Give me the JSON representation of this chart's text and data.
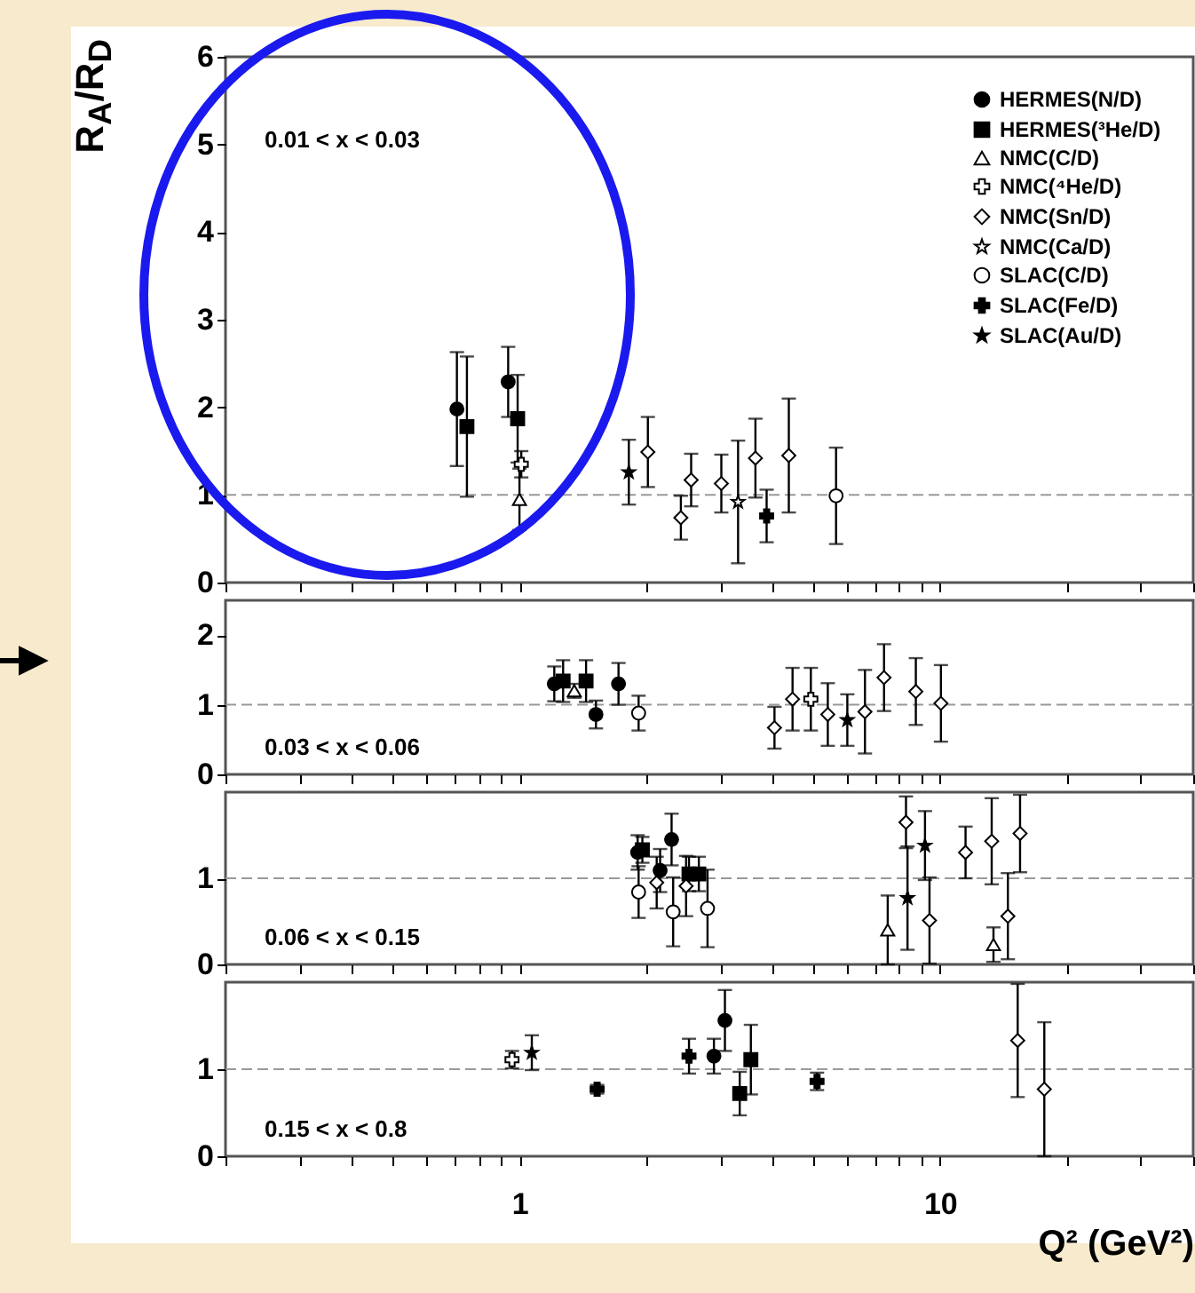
{
  "chart_data": [
    {
      "type": "scatter",
      "ylabel": "R$_{A}$/R$_{D}$",
      "annotations": [
        "0.01 < x < 0.03"
      ],
      "log": "x",
      "xlim": [
        0.2,
        40
      ],
      "xticks": [
        {
          "value": 0.2,
          "label": null
        },
        {
          "value": 0.3,
          "label": null
        },
        {
          "value": 0.4,
          "label": null
        },
        {
          "value": 0.5,
          "label": null
        },
        {
          "value": 0.6,
          "label": null
        },
        {
          "value": 0.7,
          "label": null
        },
        {
          "value": 0.8,
          "label": null
        },
        {
          "value": 0.9,
          "label": null
        },
        {
          "value": 1,
          "label": null
        },
        {
          "value": 2,
          "label": null
        },
        {
          "value": 3,
          "label": null
        },
        {
          "value": 4,
          "label": null
        },
        {
          "value": 5,
          "label": null
        },
        {
          "value": 6,
          "label": null
        },
        {
          "value": 7,
          "label": null
        },
        {
          "value": 8,
          "label": null
        },
        {
          "value": 9,
          "label": null
        },
        {
          "value": 10,
          "label": null
        },
        {
          "value": 20,
          "label": null
        },
        {
          "value": 30,
          "label": null
        },
        {
          "value": 40,
          "label": null
        }
      ],
      "ylim": [
        0,
        6
      ],
      "yticks": [
        0,
        1,
        2,
        3,
        4,
        5,
        6
      ],
      "tick_labels": "y",
      "legend": "top right",
      "ref_lines": [
        {
          "axis": "y",
          "value": 1,
          "color": "#999999",
          "line_style": "dashed"
        }
      ],
      "series": [
        {
          "name": "HERMES(N/D)",
          "marker": "circle",
          "color": "#000000",
          "x": [
            0.71,
            0.94
          ],
          "values": [
            1.98,
            2.29
          ],
          "errors": [
            0.65,
            0.4
          ]
        },
        {
          "name": "HERMES(³He/D)",
          "marker": "square",
          "color": "#000000",
          "x": [
            0.75,
            0.99
          ],
          "values": [
            1.78,
            1.87
          ],
          "errors": [
            0.8,
            0.5
          ]
        },
        {
          "name": "NMC(C/D)",
          "marker": "triangle",
          "color": "#ffffff",
          "x": [
            1.0
          ],
          "values": [
            0.95
          ],
          "errors": [
            0.35
          ]
        },
        {
          "name": "NMC(⁴He/D)",
          "marker": "cross",
          "color": "#ffffff",
          "x": [
            1.01
          ],
          "values": [
            1.35
          ],
          "errors": [
            0.15
          ]
        },
        {
          "name": "NMC(Sn/D)",
          "marker": "diamond",
          "color": "#ffffff",
          "x": [
            2.02,
            2.42,
            2.56,
            3.02,
            3.64,
            4.37
          ],
          "values": [
            1.49,
            0.74,
            1.17,
            1.13,
            1.42,
            1.45
          ],
          "errors": [
            0.4,
            0.25,
            0.3,
            0.33,
            0.45,
            0.65
          ]
        },
        {
          "name": "NMC(Ca/D)",
          "marker": "star",
          "color": "#ffffff",
          "x": [
            3.31
          ],
          "values": [
            0.92
          ],
          "errors": [
            0.7
          ]
        },
        {
          "name": "SLAC(C/D)",
          "marker": "circle",
          "color": "#ffffff",
          "x": [
            5.66
          ],
          "values": [
            0.99
          ],
          "errors": [
            0.55
          ]
        },
        {
          "name": "SLAC(Fe/D)",
          "marker": "cross",
          "color": "#000000",
          "x": [
            3.87
          ],
          "values": [
            0.76
          ],
          "errors": [
            0.3
          ]
        },
        {
          "name": "SLAC(Au/D)",
          "marker": "star",
          "color": "#000000",
          "x": [
            1.82
          ],
          "values": [
            1.26
          ],
          "errors": [
            0.37
          ]
        }
      ]
    },
    {
      "type": "scatter",
      "annotations": [
        "0.03 < x < 0.06"
      ],
      "log": "x",
      "xlim": [
        0.2,
        40
      ],
      "xticks": [
        {
          "value": 0.2,
          "label": null
        },
        {
          "value": 0.3,
          "label": null
        },
        {
          "value": 0.4,
          "label": null
        },
        {
          "value": 0.5,
          "label": null
        },
        {
          "value": 0.6,
          "label": null
        },
        {
          "value": 0.7,
          "label": null
        },
        {
          "value": 0.8,
          "label": null
        },
        {
          "value": 0.9,
          "label": null
        },
        {
          "value": 1,
          "label": null
        },
        {
          "value": 2,
          "label": null
        },
        {
          "value": 3,
          "label": null
        },
        {
          "value": 4,
          "label": null
        },
        {
          "value": 5,
          "label": null
        },
        {
          "value": 6,
          "label": null
        },
        {
          "value": 7,
          "label": null
        },
        {
          "value": 8,
          "label": null
        },
        {
          "value": 9,
          "label": null
        },
        {
          "value": 10,
          "label": null
        },
        {
          "value": 20,
          "label": null
        },
        {
          "value": 30,
          "label": null
        },
        {
          "value": 40,
          "label": null
        }
      ],
      "ylim": [
        0,
        2.5
      ],
      "yticks": [
        0,
        1,
        2
      ],
      "tick_labels": "y",
      "ref_lines": [
        {
          "axis": "y",
          "value": 1,
          "color": "#999999",
          "line_style": "dashed"
        }
      ],
      "series": [
        {
          "marker": "circle",
          "color": "#000000",
          "x": [
            1.21,
            1.52,
            1.72
          ],
          "values": [
            1.3,
            0.86,
            1.3
          ],
          "errors": [
            0.25,
            0.2,
            0.3
          ]
        },
        {
          "marker": "square",
          "color": "#000000",
          "x": [
            1.27,
            1.44
          ],
          "values": [
            1.34,
            1.34
          ],
          "errors": [
            0.3,
            0.3
          ]
        },
        {
          "marker": "triangle",
          "color": "#ffffff",
          "x": [
            1.35
          ],
          "values": [
            1.2
          ],
          "errors": [
            0.1
          ]
        },
        {
          "marker": "cross",
          "color": "#ffffff",
          "x": [
            4.93
          ],
          "values": [
            1.08
          ],
          "errors": [
            0.45
          ]
        },
        {
          "marker": "diamond",
          "color": "#ffffff",
          "x": [
            4.04,
            4.46,
            5.41,
            6.63,
            7.36,
            8.76,
            10.05
          ],
          "values": [
            0.67,
            1.08,
            0.86,
            0.9,
            1.39,
            1.19,
            1.02
          ],
          "errors": [
            0.3,
            0.45,
            0.45,
            0.6,
            0.48,
            0.48,
            0.55
          ]
        },
        {
          "marker": "circle",
          "color": "#ffffff",
          "x": [
            1.92
          ],
          "values": [
            0.88
          ],
          "errors": [
            0.25
          ]
        },
        {
          "marker": "star",
          "color": "#000000",
          "x": [
            6.02
          ],
          "values": [
            0.78
          ],
          "errors": [
            0.37
          ]
        }
      ]
    },
    {
      "type": "scatter",
      "annotations": [
        "0.06 < x < 0.15"
      ],
      "log": "x",
      "xlim": [
        0.2,
        40
      ],
      "xticks": [
        {
          "value": 0.2,
          "label": null
        },
        {
          "value": 0.3,
          "label": null
        },
        {
          "value": 0.4,
          "label": null
        },
        {
          "value": 0.5,
          "label": null
        },
        {
          "value": 0.6,
          "label": null
        },
        {
          "value": 0.7,
          "label": null
        },
        {
          "value": 0.8,
          "label": null
        },
        {
          "value": 0.9,
          "label": null
        },
        {
          "value": 1,
          "label": null
        },
        {
          "value": 2,
          "label": null
        },
        {
          "value": 3,
          "label": null
        },
        {
          "value": 4,
          "label": null
        },
        {
          "value": 5,
          "label": null
        },
        {
          "value": 6,
          "label": null
        },
        {
          "value": 7,
          "label": null
        },
        {
          "value": 8,
          "label": null
        },
        {
          "value": 9,
          "label": null
        },
        {
          "value": 10,
          "label": null
        },
        {
          "value": 20,
          "label": null
        },
        {
          "value": 30,
          "label": null
        },
        {
          "value": 40,
          "label": null
        }
      ],
      "ylim": [
        0,
        2
      ],
      "yticks": [
        0,
        1
      ],
      "tick_labels": "y",
      "ref_lines": [
        {
          "axis": "y",
          "value": 1,
          "color": "#999999",
          "line_style": "dashed"
        }
      ],
      "series": [
        {
          "marker": "circle",
          "color": "#000000",
          "x": [
            1.91,
            2.16,
            2.3
          ],
          "values": [
            1.3,
            1.09,
            1.45
          ],
          "errors": [
            0.2,
            0.25,
            0.3
          ]
        },
        {
          "marker": "square",
          "color": "#000000",
          "x": [
            1.96,
            2.53,
            2.67
          ],
          "values": [
            1.33,
            1.05,
            1.05
          ],
          "errors": [
            0.15,
            0.2,
            0.2
          ]
        },
        {
          "marker": "triangle",
          "color": "#ffffff",
          "x": [
            7.51,
            13.4
          ],
          "values": [
            0.4,
            0.23
          ],
          "errors": [
            0.4,
            0.2
          ]
        },
        {
          "marker": "diamond",
          "color": "#ffffff",
          "x": [
            2.12,
            2.49,
            8.3,
            9.44,
            11.5,
            13.27,
            14.5,
            15.5
          ],
          "values": [
            0.95,
            0.91,
            1.65,
            0.51,
            1.3,
            1.43,
            0.56,
            1.52
          ],
          "errors": [
            0.3,
            0.35,
            0.3,
            0.5,
            0.3,
            0.5,
            0.5,
            0.45
          ]
        },
        {
          "marker": "circle",
          "color": "#ffffff",
          "x": [
            1.92,
            2.32,
            2.8
          ],
          "values": [
            0.84,
            0.61,
            0.65
          ],
          "errors": [
            0.3,
            0.4,
            0.45
          ]
        },
        {
          "marker": "star",
          "color": "#000000",
          "x": [
            8.37,
            9.21
          ],
          "values": [
            0.77,
            1.38
          ],
          "errors": [
            0.6,
            0.4
          ]
        }
      ]
    },
    {
      "type": "scatter",
      "xlabel": "Q² (GeV²)",
      "annotations": [
        "0.15 < x < 0.8"
      ],
      "log": "x",
      "xlim": [
        0.2,
        40
      ],
      "xticks": [
        {
          "value": 0.2,
          "label": null
        },
        {
          "value": 0.3,
          "label": null
        },
        {
          "value": 0.4,
          "label": null
        },
        {
          "value": 0.5,
          "label": null
        },
        {
          "value": 0.6,
          "label": null
        },
        {
          "value": 0.7,
          "label": null
        },
        {
          "value": 0.8,
          "label": null
        },
        {
          "value": 0.9,
          "label": null
        },
        1,
        {
          "value": 2,
          "label": null
        },
        {
          "value": 3,
          "label": null
        },
        {
          "value": 4,
          "label": null
        },
        {
          "value": 5,
          "label": null
        },
        {
          "value": 6,
          "label": null
        },
        {
          "value": 7,
          "label": null
        },
        {
          "value": 8,
          "label": null
        },
        {
          "value": 9,
          "label": null
        },
        10,
        {
          "value": 20,
          "label": null
        },
        {
          "value": 30,
          "label": null
        },
        {
          "value": 40,
          "label": null
        }
      ],
      "ylim": [
        0,
        2
      ],
      "yticks": [
        0,
        1
      ],
      "ref_lines": [
        {
          "axis": "y",
          "value": 1,
          "color": "#999999",
          "line_style": "dashed"
        }
      ],
      "series": [
        {
          "marker": "cross",
          "color": "#ffffff",
          "x": [
            0.96
          ],
          "values": [
            1.11
          ],
          "errors": [
            0.1
          ]
        },
        {
          "marker": "star",
          "color": "#000000",
          "x": [
            1.07
          ],
          "values": [
            1.19
          ],
          "errors": [
            0.2
          ]
        },
        {
          "marker": "cross",
          "color": "#000000",
          "x": [
            1.53,
            2.53,
            5.1
          ],
          "values": [
            0.77,
            1.15,
            0.86
          ],
          "errors": [
            0.05,
            0.2,
            0.1
          ]
        },
        {
          "marker": "circle",
          "color": "#000000",
          "x": [
            2.9,
            3.08
          ],
          "values": [
            1.15,
            1.56
          ],
          "errors": [
            0.2,
            0.35
          ]
        },
        {
          "marker": "square",
          "color": "#000000",
          "x": [
            3.34,
            3.55
          ],
          "values": [
            0.72,
            1.11
          ],
          "errors": [
            0.25,
            0.4
          ]
        },
        {
          "marker": "diamond",
          "color": "#ffffff",
          "x": [
            15.3,
            17.7
          ],
          "values": [
            1.33,
            0.77
          ],
          "errors": [
            0.65,
            0.77
          ]
        }
      ]
    }
  ]
}
